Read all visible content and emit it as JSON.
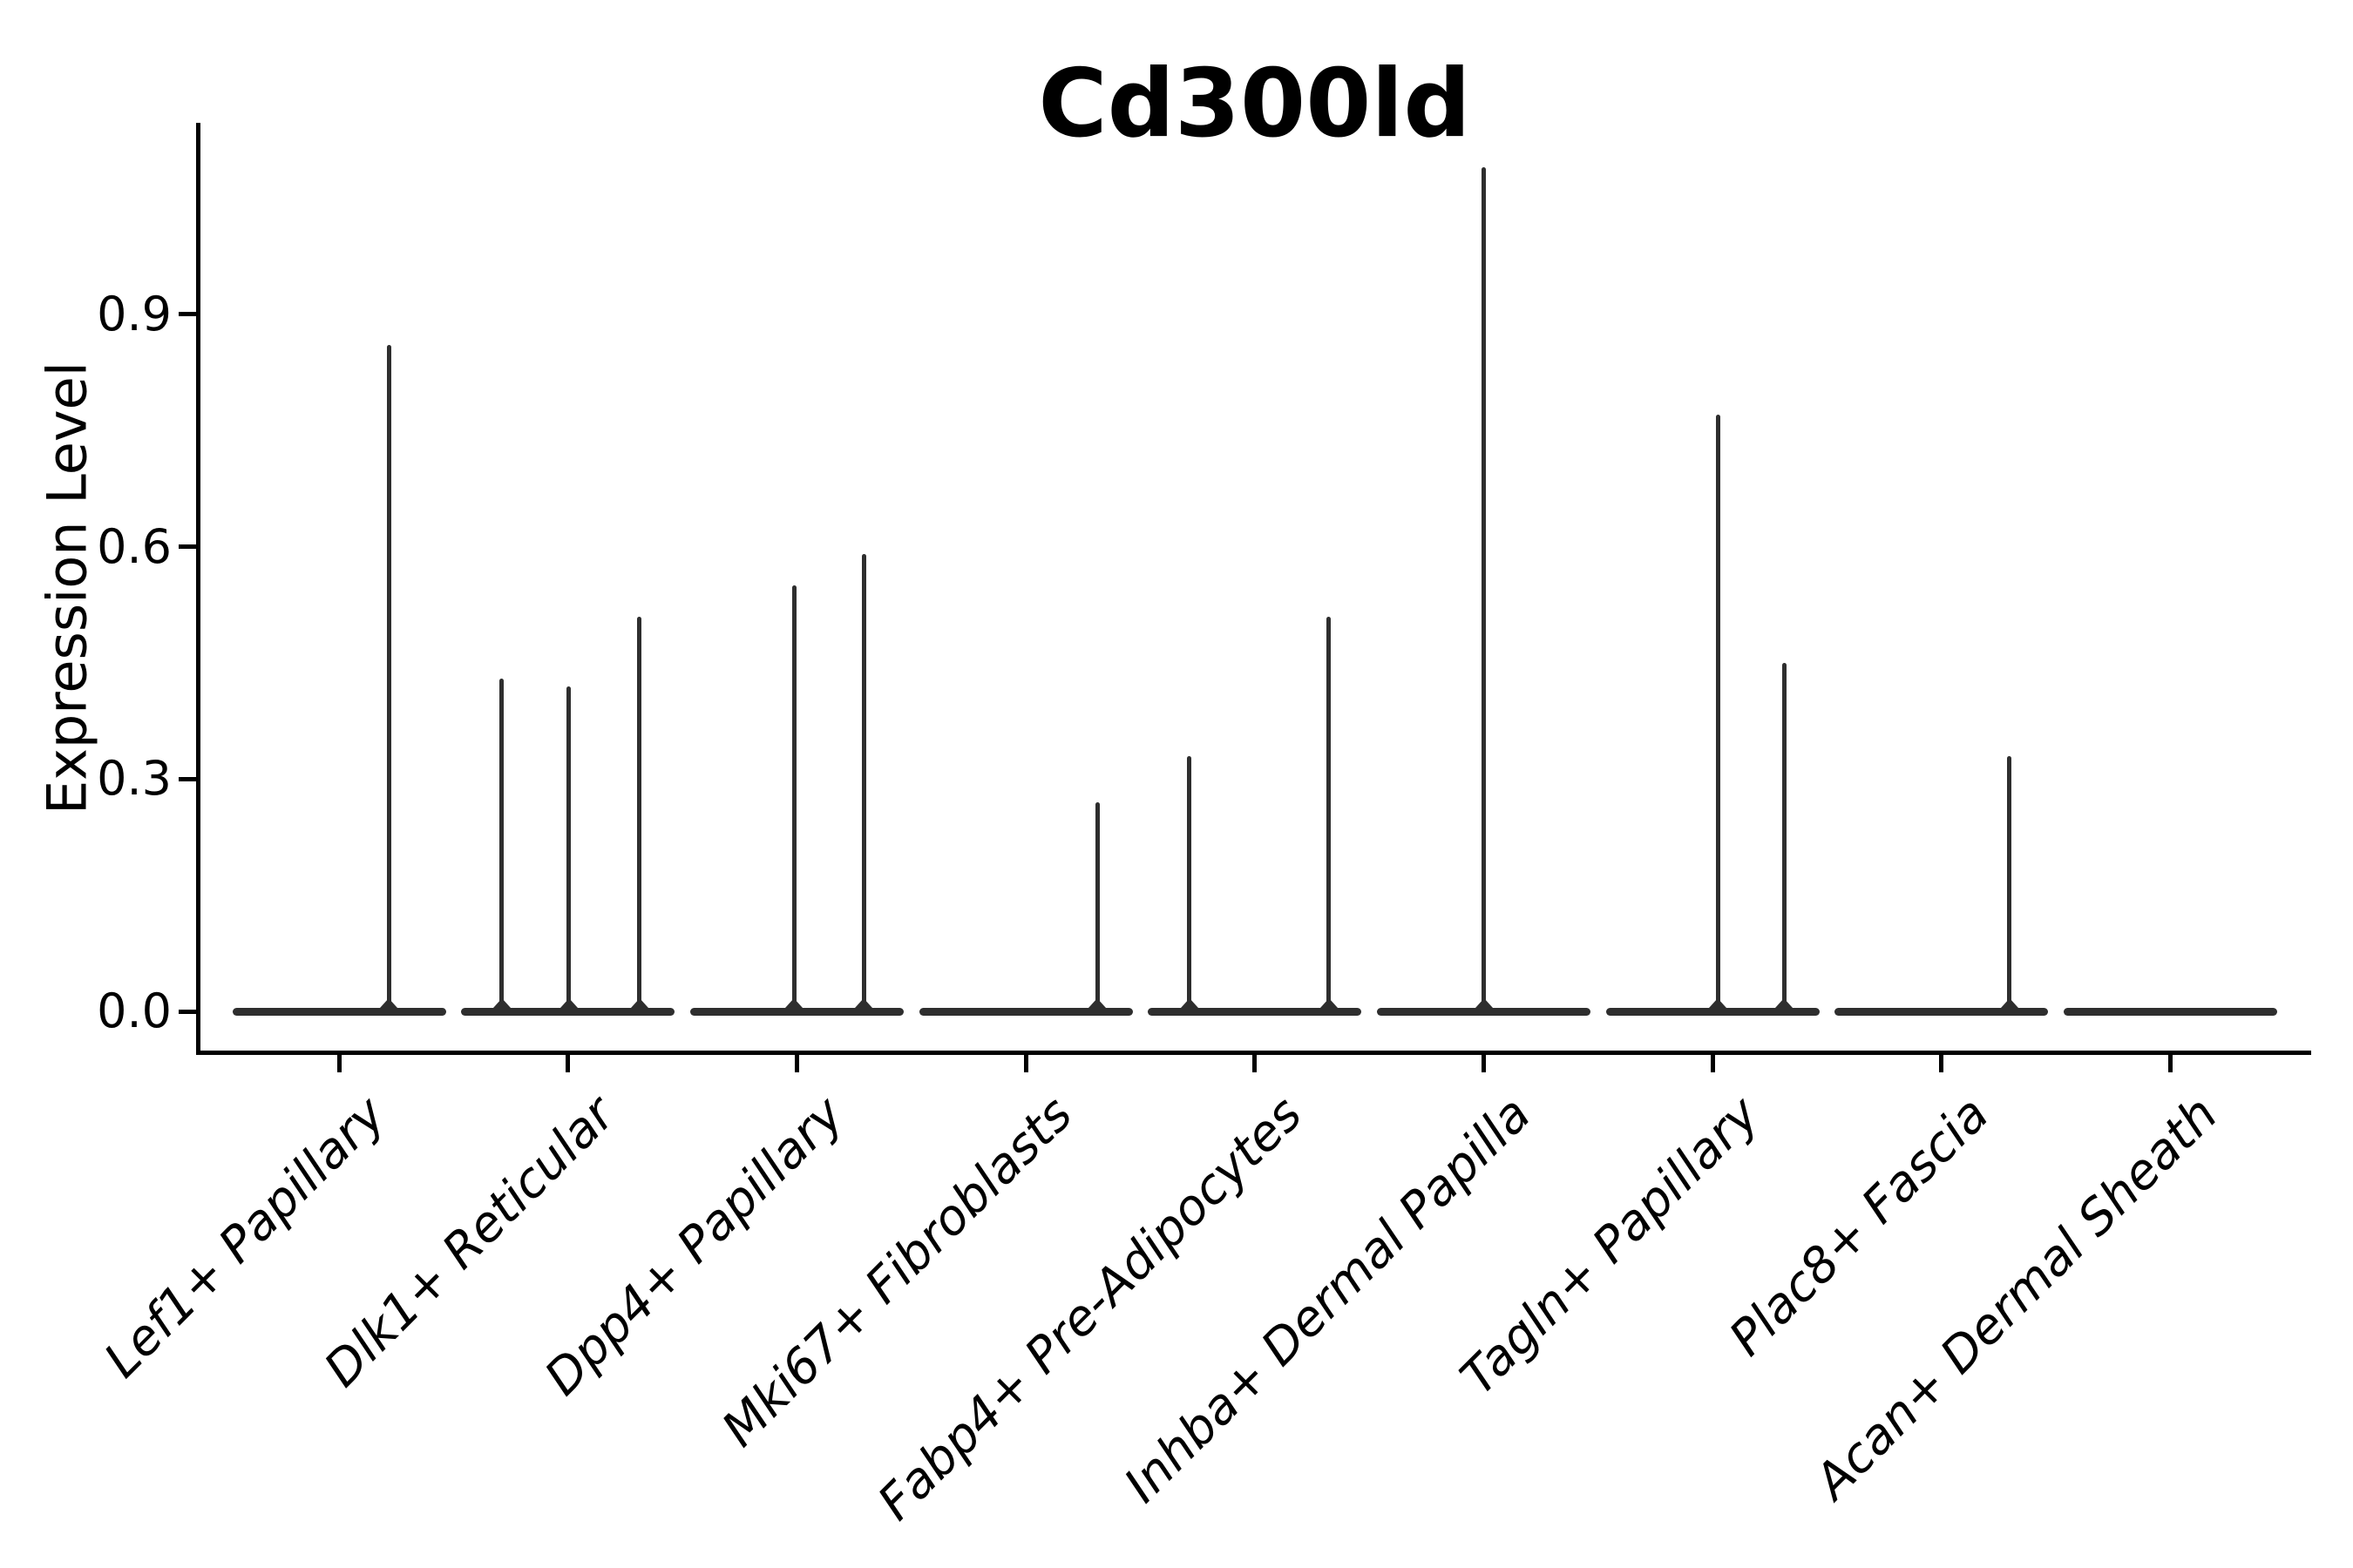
{
  "chart_data": {
    "type": "violin",
    "title": "Cd300ld",
    "ylabel": "Expression Level",
    "xlabel": "",
    "yticks": [
      "0.0",
      "0.3",
      "0.6",
      "0.9"
    ],
    "ytick_values": [
      0.0,
      0.3,
      0.6,
      0.9
    ],
    "ylim": [
      0,
      1.147
    ],
    "grid": false,
    "legend": false,
    "colors": {
      "violin": "#2e2e2e",
      "axis": "#000000",
      "text": "#000000",
      "background": "#ffffff"
    },
    "categories": [
      "Lef1+ Papillary",
      "Dlk1+ Reticular",
      "Dpp4+ Papillary",
      "Mki67+ Fibroblasts",
      "Fabp4+ Pre-Adipocytes",
      "Inhba+ Dermal Papilla",
      "Tagln+ Papillary",
      "Plac8+ Fascia",
      "Acan+ Dermal Sheath"
    ],
    "groups": [
      {
        "label": "Lef1+ Papillary",
        "spikes": [
          {
            "x_offset": 57,
            "value": 0.86
          }
        ]
      },
      {
        "label": "Dlk1+ Reticular",
        "spikes": [
          {
            "x_offset": -76,
            "value": 0.43
          },
          {
            "x_offset": 1,
            "value": 0.42
          },
          {
            "x_offset": 82,
            "value": 0.51
          }
        ]
      },
      {
        "label": "Dpp4+ Papillary",
        "spikes": [
          {
            "x_offset": -3,
            "value": 0.55
          },
          {
            "x_offset": 77,
            "value": 0.59
          }
        ]
      },
      {
        "label": "Mki67+ Fibroblasts",
        "spikes": [
          {
            "x_offset": 82,
            "value": 0.27
          }
        ]
      },
      {
        "label": "Fabp4+ Pre-Adipocytes",
        "spikes": [
          {
            "x_offset": -75,
            "value": 0.33
          },
          {
            "x_offset": 85,
            "value": 0.51
          }
        ]
      },
      {
        "label": "Inhba+ Dermal Papilla",
        "spikes": [
          {
            "x_offset": 0,
            "value": 1.09
          }
        ]
      },
      {
        "label": "Tagln+ Papillary",
        "spikes": [
          {
            "x_offset": 6,
            "value": 0.77
          },
          {
            "x_offset": 82,
            "value": 0.45
          }
        ]
      },
      {
        "label": "Plac8+ Fascia",
        "spikes": [
          {
            "x_offset": 78,
            "value": 0.33
          }
        ]
      },
      {
        "label": "Acan+ Dermal Sheath",
        "spikes": []
      }
    ]
  }
}
